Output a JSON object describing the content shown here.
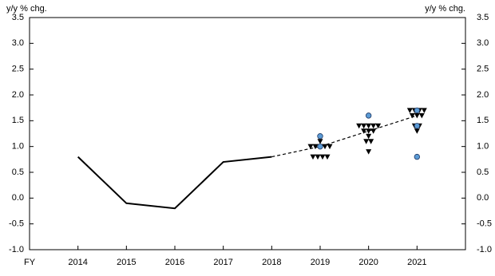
{
  "chart_data": {
    "type": "line",
    "y_label": "y/y % chg.",
    "xlim": [
      2013,
      2022
    ],
    "xticks": [
      {
        "value": 2013,
        "label": "FY"
      },
      2014,
      2015,
      2016,
      2017,
      2018,
      2019,
      2020,
      2021
    ],
    "ylim": [
      -1.0,
      3.5
    ],
    "yticks": [
      {
        "value": -1,
        "label": "-1.0"
      },
      -0.5,
      {
        "value": 0,
        "label": "0.0"
      },
      0.5,
      {
        "value": 1,
        "label": "1.0"
      },
      1.5,
      {
        "value": 2,
        "label": "2.0"
      },
      2.5,
      {
        "value": 3,
        "label": "3.0"
      },
      3.5
    ],
    "series": [
      {
        "color": "#000000",
        "style": "solid",
        "x": [
          2014,
          2015,
          2016,
          2017,
          2018
        ],
        "values": [
          0.8,
          -0.1,
          -0.2,
          0.7,
          0.8
        ]
      },
      {
        "color": "#000000",
        "style": "dashed",
        "x": [
          2018,
          2019,
          2020,
          2021
        ],
        "values": [
          0.8,
          1.0,
          1.3,
          1.6
        ]
      }
    ],
    "points": [
      {
        "marker": "triangle",
        "color": "#000000",
        "x": [
          2019,
          2019,
          2019,
          2019,
          2019,
          2019,
          2019,
          2019,
          2019,
          2019,
          2020,
          2020,
          2020,
          2020,
          2020,
          2020,
          2020,
          2020,
          2020,
          2020,
          2020,
          2020,
          2021,
          2021,
          2021,
          2021,
          2021,
          2021,
          2021,
          2021,
          2021,
          2021
        ],
        "values": [
          1.1,
          1.0,
          1.0,
          1.0,
          1.0,
          1.0,
          0.8,
          0.8,
          0.8,
          0.8,
          1.4,
          1.4,
          1.4,
          1.4,
          1.4,
          1.3,
          1.3,
          1.3,
          1.2,
          1.1,
          1.1,
          0.9,
          1.7,
          1.7,
          1.7,
          1.7,
          1.6,
          1.6,
          1.6,
          1.4,
          1.4,
          1.3
        ]
      },
      {
        "marker": "circle",
        "color": "#5b9bd5",
        "x": [
          2019,
          2019,
          2020,
          2021,
          2021,
          2021
        ],
        "values": [
          1.2,
          1.0,
          1.6,
          1.7,
          1.4,
          0.8
        ]
      }
    ]
  }
}
